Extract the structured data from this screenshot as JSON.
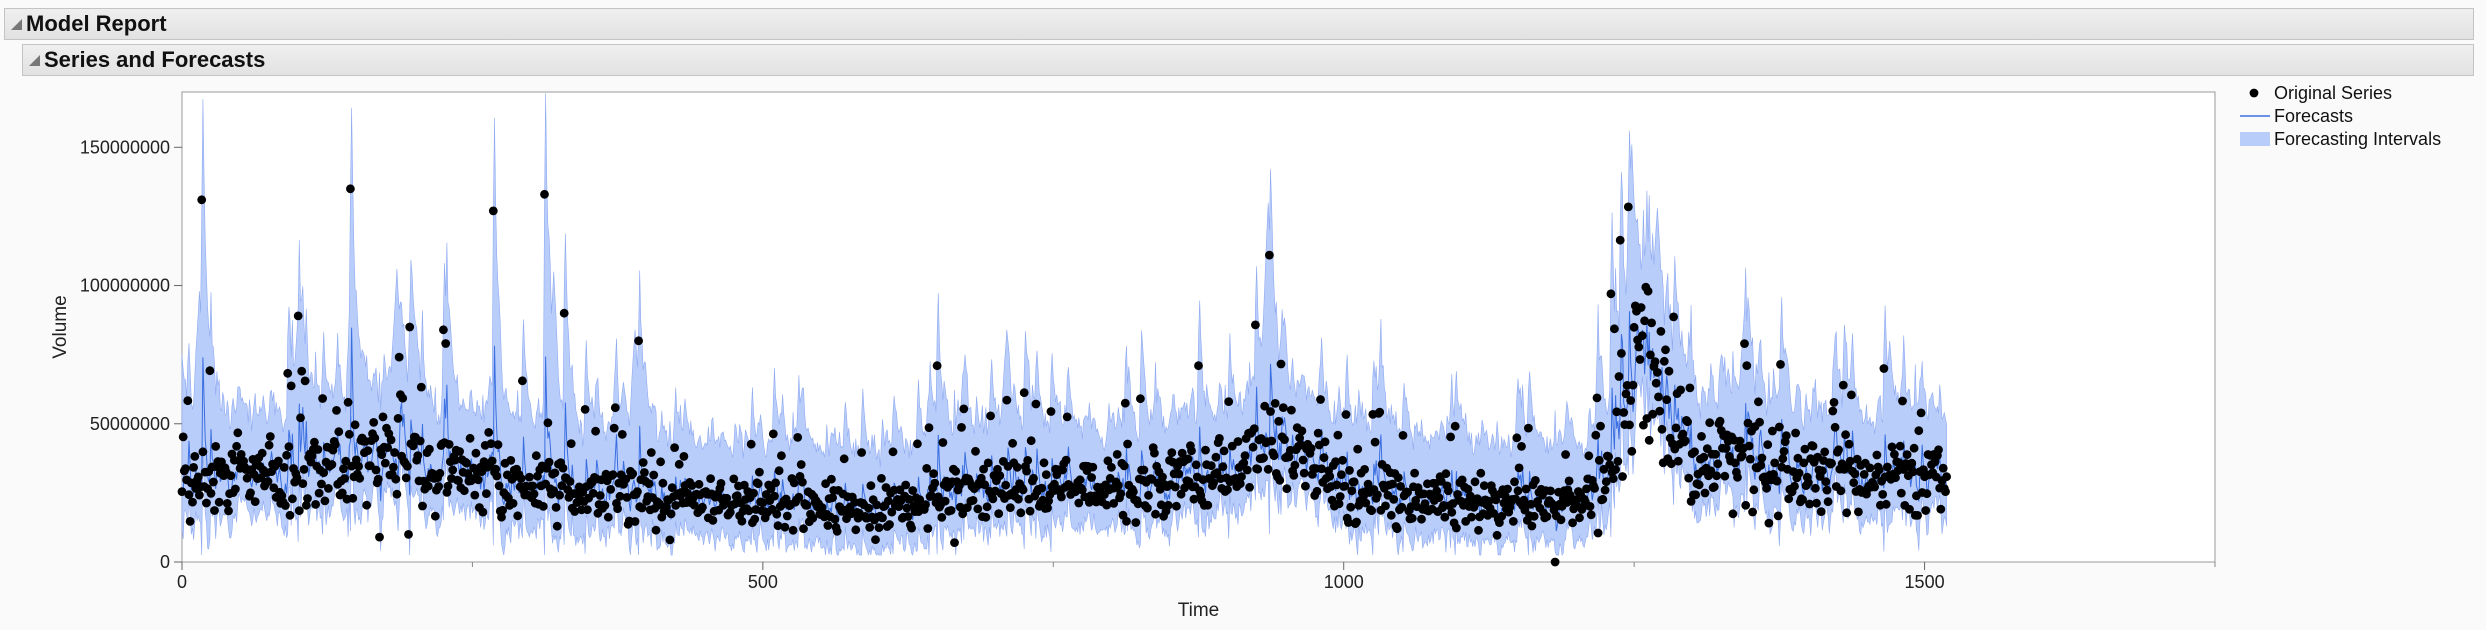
{
  "headers": {
    "model_report": "Model Report",
    "series_forecasts": "Series and Forecasts"
  },
  "colors": {
    "points": "#000000",
    "forecast_line": "#3a6fe0",
    "interval_fill": "#b9cdfb",
    "interval_edge": "#8faaf0"
  },
  "chart_data": {
    "type": "line",
    "xlabel": "Time",
    "ylabel": "Volume",
    "xlim": [
      0,
      1750
    ],
    "ylim": [
      0,
      170000000
    ],
    "x_ticks": [
      0,
      500,
      1000,
      1500
    ],
    "x_tick_labels": [
      "0",
      "500",
      "1000",
      "1500"
    ],
    "y_ticks": [
      0,
      50000000,
      100000000,
      150000000
    ],
    "y_tick_labels": [
      "0",
      "50000000",
      "100000000",
      "150000000"
    ],
    "x_minor_ticks": [
      250,
      750,
      1250,
      1750
    ],
    "legend_position": "right",
    "legend": [
      {
        "key": "points",
        "label": "Original Series"
      },
      {
        "key": "line",
        "label": "Forecasts"
      },
      {
        "key": "band",
        "label": "Forecasting Intervals"
      }
    ],
    "n_observations": 1520,
    "series": [
      {
        "name": "Original Series",
        "kind": "points",
        "level_knots": [
          [
            0,
            30000000
          ],
          [
            100,
            32000000
          ],
          [
            200,
            38000000
          ],
          [
            300,
            28000000
          ],
          [
            400,
            23000000
          ],
          [
            500,
            21000000
          ],
          [
            600,
            19000000
          ],
          [
            700,
            27000000
          ],
          [
            800,
            26000000
          ],
          [
            900,
            32000000
          ],
          [
            940,
            45000000
          ],
          [
            1000,
            26000000
          ],
          [
            1100,
            23000000
          ],
          [
            1200,
            21000000
          ],
          [
            1230,
            35000000
          ],
          [
            1250,
            78000000
          ],
          [
            1280,
            55000000
          ],
          [
            1300,
            38000000
          ],
          [
            1400,
            33000000
          ],
          [
            1520,
            30000000
          ]
        ],
        "highlights": [
          [
            17,
            131000000
          ],
          [
            145,
            135000000
          ],
          [
            268,
            127000000
          ],
          [
            312,
            133000000
          ],
          [
            329,
            90000000
          ],
          [
            936,
            111000000
          ],
          [
            393,
            80000000
          ],
          [
            196,
            85000000
          ],
          [
            225,
            84000000
          ],
          [
            100,
            89000000
          ],
          [
            650,
            71000000
          ],
          [
            875,
            71000000
          ],
          [
            1230,
            97000000
          ],
          [
            1345,
            79000000
          ],
          [
            1430,
            64000000
          ],
          [
            1465,
            70000000
          ],
          [
            1182,
            0
          ],
          [
            170,
            9000000
          ],
          [
            195,
            10000000
          ],
          [
            420,
            8000000
          ],
          [
            665,
            7000000
          ]
        ]
      },
      {
        "name": "Forecasts",
        "kind": "line"
      },
      {
        "name": "Forecasting Intervals",
        "kind": "band",
        "peaks": [
          [
            0,
            75000000
          ],
          [
            15,
            98000000
          ],
          [
            100,
            90000000
          ],
          [
            147,
            116000000
          ],
          [
            185,
            106000000
          ],
          [
            230,
            92000000
          ],
          [
            320,
            105000000
          ],
          [
            390,
            84000000
          ],
          [
            710,
            84000000
          ],
          [
            935,
            130000000
          ],
          [
            1248,
            151000000
          ],
          [
            1270,
            128000000
          ],
          [
            1345,
            90000000
          ],
          [
            1470,
            80000000
          ]
        ]
      }
    ]
  }
}
